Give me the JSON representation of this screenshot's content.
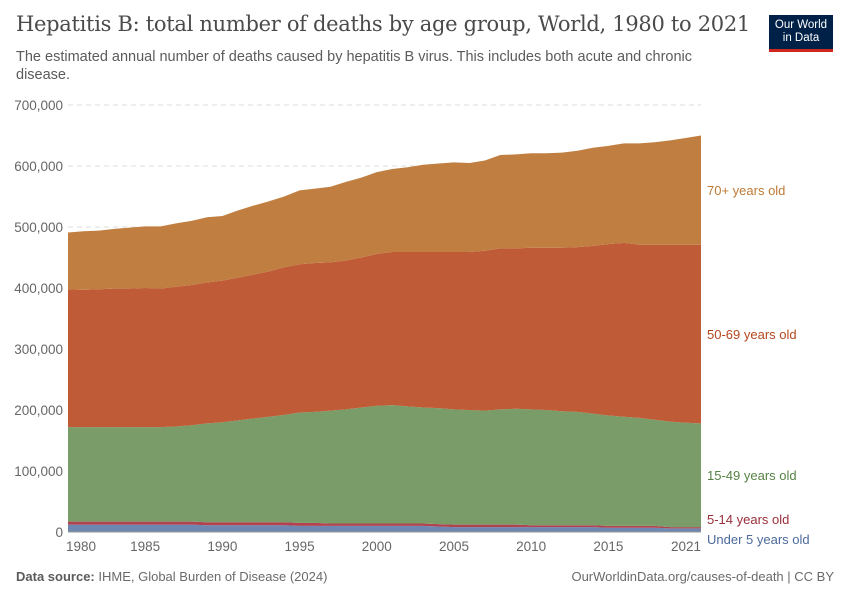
{
  "header": {
    "title": "Hepatitis B: total number of deaths by age group, World, 1980 to 2021",
    "subtitle": "The estimated annual number of deaths caused by hepatitis B virus. This includes both acute and chronic disease.",
    "logo": "Our World in Data"
  },
  "footer": {
    "source_label": "Data source:",
    "source": "IHME, Global Burden of Disease (2024)",
    "link": "OurWorldinData.org/causes-of-death | CC BY"
  },
  "chart_data": {
    "type": "area",
    "stacked": true,
    "title": "Hepatitis B: total number of deaths by age group, World, 1980 to 2021",
    "xlabel": "",
    "ylabel": "",
    "xlim": [
      1980,
      2021
    ],
    "ylim": [
      0,
      700000
    ],
    "grid": "horizontal dashed",
    "legend": "right, inline labels",
    "y_ticks": [
      "0",
      "100,000",
      "200,000",
      "300,000",
      "400,000",
      "500,000",
      "600,000",
      "700,000"
    ],
    "x_ticks": [
      "1980",
      "1985",
      "1990",
      "1995",
      "2000",
      "2005",
      "2010",
      "2015",
      "2021"
    ],
    "x": [
      1980,
      1981,
      1982,
      1983,
      1984,
      1985,
      1986,
      1987,
      1988,
      1989,
      1990,
      1991,
      1992,
      1993,
      1994,
      1995,
      1996,
      1997,
      1998,
      1999,
      2000,
      2001,
      2002,
      2003,
      2004,
      2005,
      2006,
      2007,
      2008,
      2009,
      2010,
      2011,
      2012,
      2013,
      2014,
      2015,
      2016,
      2017,
      2018,
      2019,
      2020,
      2021
    ],
    "series": [
      {
        "name": "Under 5 years old",
        "color": "#6d87b0",
        "label_color": "#4c6a9c",
        "values": [
          12000,
          12000,
          12000,
          12000,
          12000,
          12000,
          12000,
          12000,
          12000,
          11000,
          11000,
          11000,
          11000,
          11000,
          11000,
          10000,
          10000,
          10000,
          10000,
          10000,
          10000,
          10000,
          10000,
          10000,
          9000,
          8000,
          8000,
          8000,
          8000,
          8000,
          8000,
          8000,
          8000,
          8000,
          8000,
          7000,
          7000,
          7000,
          7000,
          6000,
          6000,
          6000
        ]
      },
      {
        "name": "5-14 years old",
        "color": "#b0434f",
        "label_color": "#9a2e3a",
        "values": [
          5000,
          5000,
          5000,
          5000,
          5000,
          5000,
          5000,
          5000,
          5000,
          5000,
          5000,
          5000,
          5000,
          5000,
          5000,
          5000,
          5000,
          4000,
          4000,
          4000,
          4000,
          4000,
          4000,
          4000,
          4000,
          4000,
          4000,
          4000,
          4000,
          4000,
          3000,
          3000,
          3000,
          3000,
          3000,
          3000,
          3000,
          3000,
          3000,
          2000,
          2000,
          2000
        ]
      },
      {
        "name": "15-49 years old",
        "color": "#7a9c68",
        "label_color": "#578145",
        "values": [
          155000,
          155000,
          155000,
          155000,
          155000,
          155000,
          155000,
          156000,
          158000,
          162000,
          164000,
          167000,
          170000,
          173000,
          176000,
          181000,
          182000,
          185000,
          187000,
          190000,
          193000,
          194000,
          192000,
          190000,
          190000,
          189000,
          188000,
          187000,
          189000,
          190000,
          190000,
          189000,
          187000,
          186000,
          183000,
          181000,
          179000,
          177000,
          174000,
          173000,
          171000,
          170000
        ]
      },
      {
        "name": "50-69 years old",
        "color": "#bf5b36",
        "label_color": "#b4471e",
        "values": [
          226000,
          225000,
          226000,
          227000,
          227000,
          228000,
          227000,
          229000,
          230000,
          231000,
          232000,
          234000,
          236000,
          238000,
          242000,
          243000,
          244000,
          243000,
          244000,
          246000,
          249000,
          251000,
          253000,
          255000,
          256000,
          258000,
          259000,
          262000,
          264000,
          263000,
          265000,
          266000,
          268000,
          270000,
          275000,
          281000,
          285000,
          284000,
          287000,
          290000,
          292000,
          293000
        ]
      },
      {
        "name": "70+ years old",
        "color": "#c07f41",
        "label_color": "#be7a36",
        "values": [
          93000,
          96000,
          96000,
          98000,
          100000,
          101000,
          102000,
          104000,
          105000,
          107000,
          106000,
          110000,
          113000,
          115000,
          116000,
          121000,
          122000,
          124000,
          129000,
          131000,
          134000,
          136000,
          139000,
          143000,
          145000,
          147000,
          146000,
          148000,
          153000,
          154000,
          155000,
          155000,
          156000,
          158000,
          161000,
          161000,
          163000,
          166000,
          168000,
          171000,
          175000,
          179000
        ]
      }
    ]
  }
}
